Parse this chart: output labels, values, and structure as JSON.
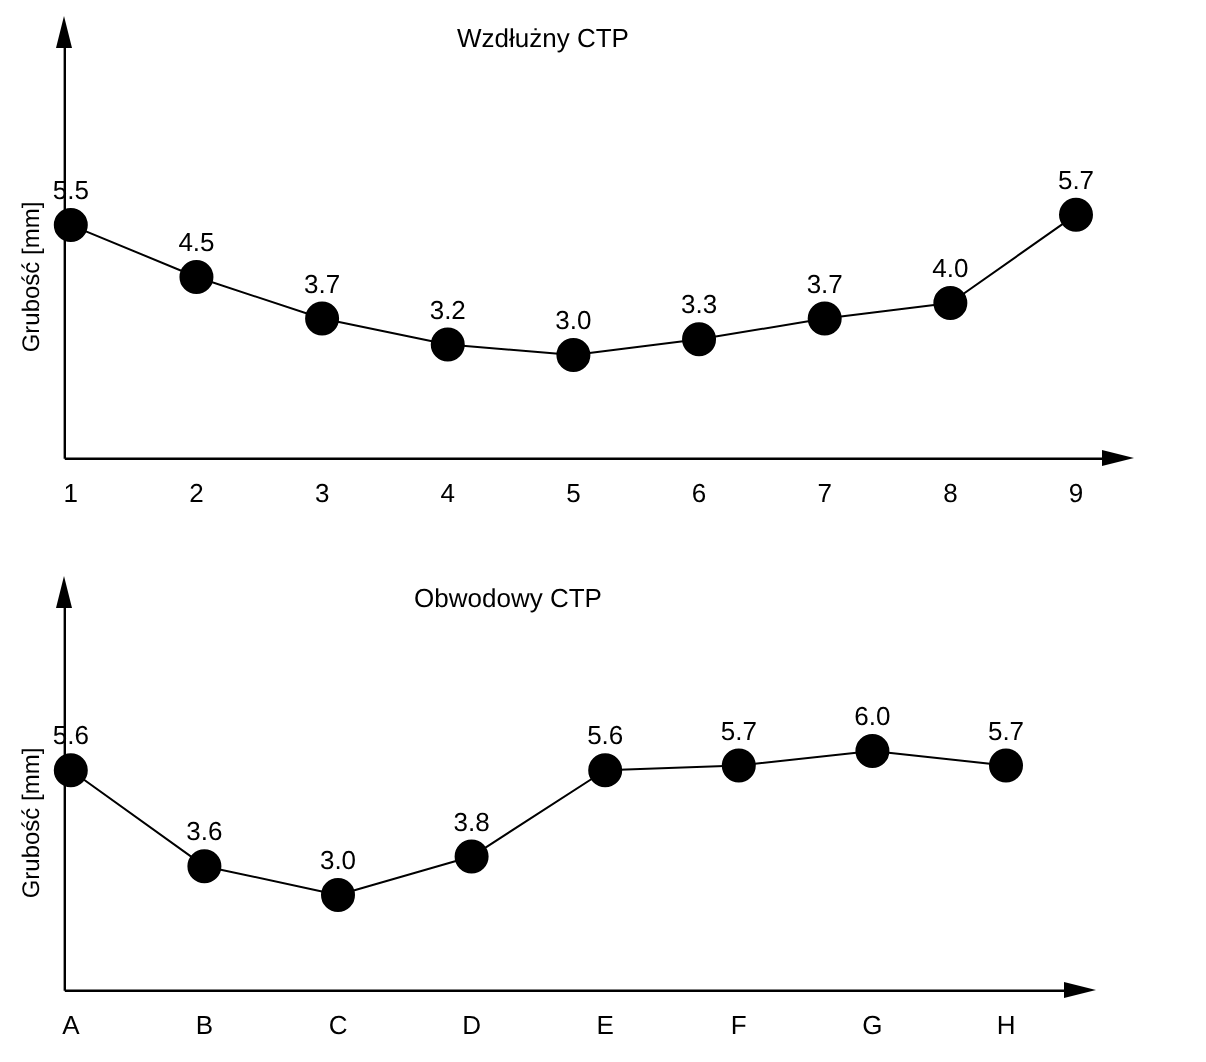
{
  "chart_data": [
    {
      "type": "line",
      "title": "Wzdłużny CTP",
      "ylabel": "Grubość [mm]",
      "categories": [
        "1",
        "2",
        "3",
        "4",
        "5",
        "6",
        "7",
        "8",
        "9"
      ],
      "marker": "circle",
      "line_style": "solid",
      "series": [
        {
          "color": "#000000",
          "values": [
            5.5,
            4.5,
            3.7,
            3.2,
            3.0,
            3.3,
            3.7,
            4.0,
            5.7
          ],
          "value_labels": [
            "5.5",
            "4.5",
            "3.7",
            "3.2",
            "3.0",
            "3.3",
            "3.7",
            "4.0",
            "5.7"
          ]
        }
      ]
    },
    {
      "type": "line",
      "title": "Obwodowy CTP",
      "ylabel": "Grubość [mm]",
      "categories": [
        "A",
        "B",
        "C",
        "D",
        "E",
        "F",
        "G",
        "H"
      ],
      "marker": "circle",
      "line_style": "solid",
      "series": [
        {
          "color": "#000000",
          "values": [
            5.6,
            3.6,
            3.0,
            3.8,
            5.6,
            5.7,
            6.0,
            5.7
          ],
          "value_labels": [
            "5.6",
            "3.6",
            "3.0",
            "3.8",
            "5.6",
            "5.7",
            "6.0",
            "5.7"
          ]
        }
      ]
    }
  ]
}
